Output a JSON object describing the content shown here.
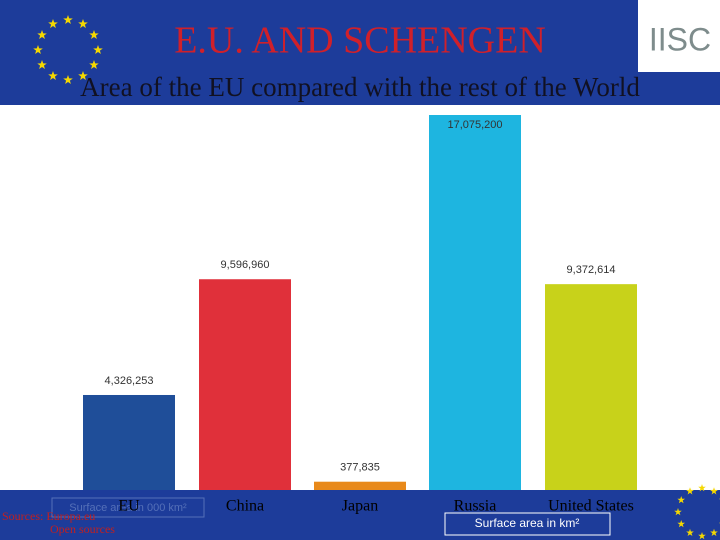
{
  "chart_data": {
    "type": "bar",
    "title": "E.U. AND SCHENGEN",
    "subtitle": "Area of the EU compared with the rest of the World",
    "logo": "IISC",
    "categories": [
      "EU",
      "China",
      "Japan",
      "Russia",
      "United States"
    ],
    "values": [
      4326253,
      9596960,
      377835,
      17075200,
      9372614
    ],
    "value_labels": [
      "4,326,253",
      "9,596,960",
      "377,835",
      "17,075,200",
      "9,372,614"
    ],
    "colors": [
      "#1f4e99",
      "#e0303a",
      "#e8891a",
      "#1eb5e0",
      "#c8d21a"
    ],
    "unit_label": "Surface area in km²",
    "faint_unit_label": "Surface area in 000 km²",
    "sources": [
      "Sources: Europa.eu",
      "Open sources"
    ]
  }
}
